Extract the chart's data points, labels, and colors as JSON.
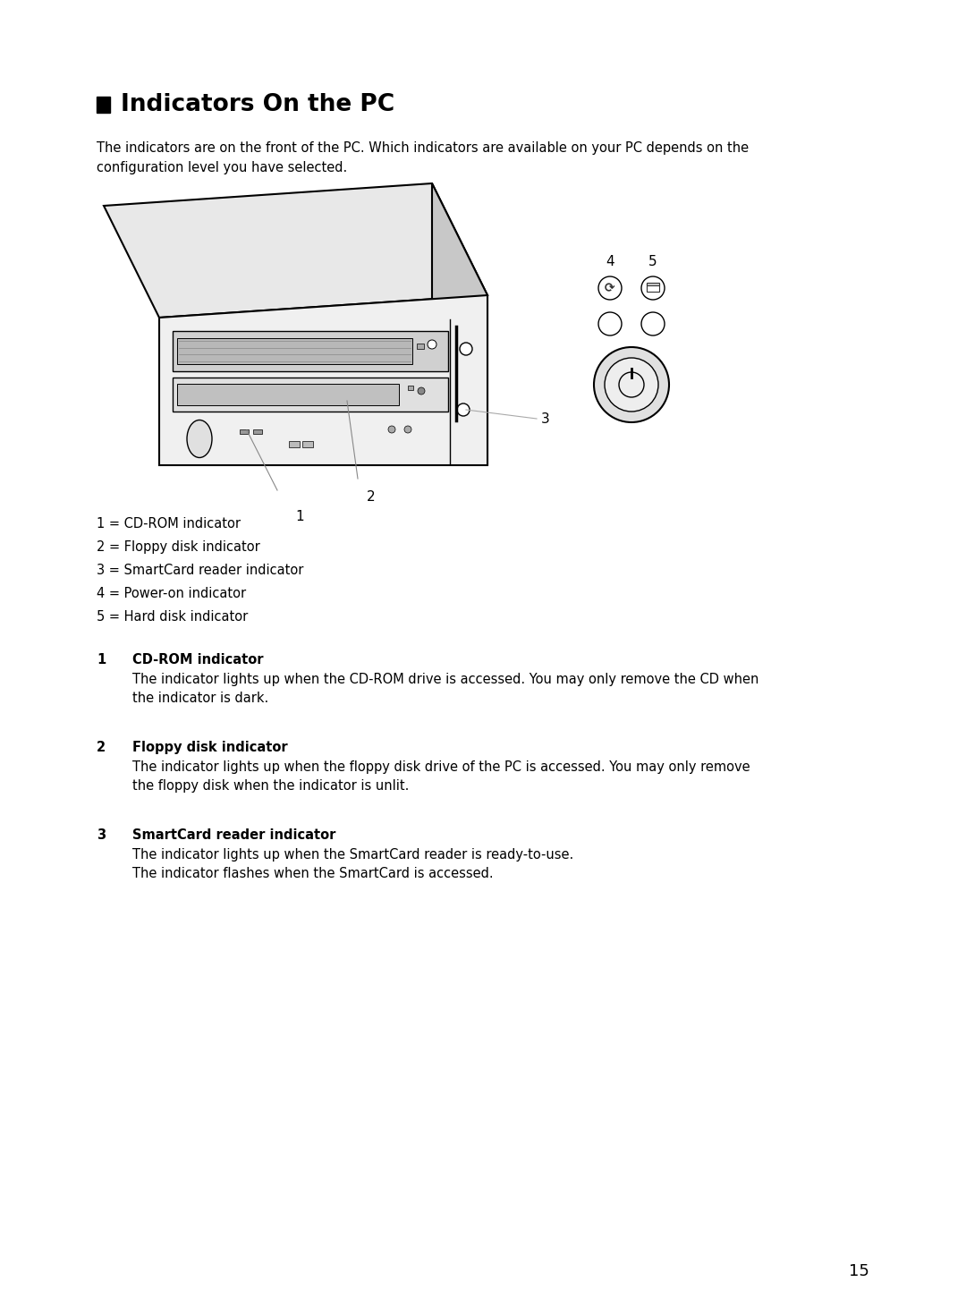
{
  "bg_color": "#ffffff",
  "title_square_color": "#000000",
  "title_text": "Indicators On the PC",
  "title_fontsize": 19,
  "intro_text": "The indicators are on the front of the PC. Which indicators are available on your PC depends on the\nconfiguration level you have selected.",
  "intro_fontsize": 10.5,
  "legend_items": [
    "1 = CD-ROM indicator",
    "2 = Floppy disk indicator",
    "3 = SmartCard reader indicator",
    "4 = Power-on indicator",
    "5 = Hard disk indicator"
  ],
  "legend_fontsize": 10.5,
  "sections": [
    {
      "number": "1",
      "heading": "CD-ROM indicator",
      "body": "The indicator lights up when the CD-ROM drive is accessed. You may only remove the CD when\nthe indicator is dark."
    },
    {
      "number": "2",
      "heading": "Floppy disk indicator",
      "body": "The indicator lights up when the floppy disk drive of the PC is accessed. You may only remove\nthe floppy disk when the indicator is unlit."
    },
    {
      "number": "3",
      "heading": "SmartCard reader indicator",
      "body": "The indicator lights up when the SmartCard reader is ready-to-use.\nThe indicator flashes when the SmartCard is accessed."
    }
  ],
  "section_heading_fontsize": 10.5,
  "section_body_fontsize": 10.5,
  "page_number": "15",
  "page_number_fontsize": 13
}
